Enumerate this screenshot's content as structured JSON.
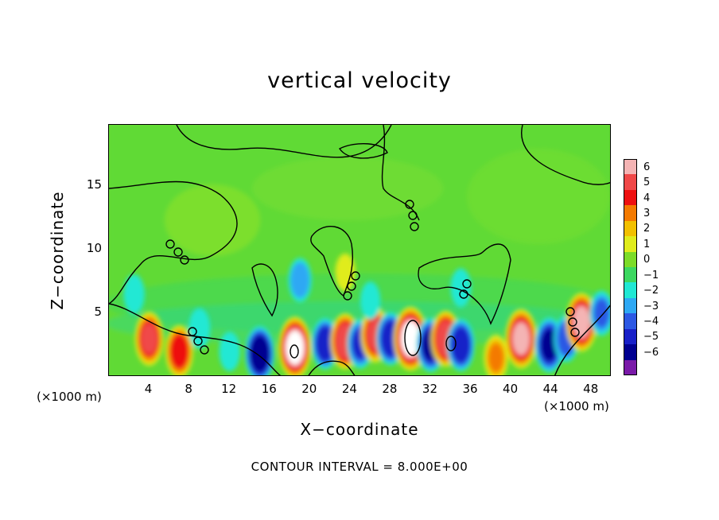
{
  "chart_data": {
    "type": "heatmap",
    "title": "vertical velocity",
    "xlabel": "X−coordinate",
    "ylabel": "Z−coordinate",
    "x_unit_left": "(×1000 m)",
    "x_unit_right": "(×1000 m)",
    "footer": "CONTOUR INTERVAL = 8.000E+00",
    "xlim": [
      0,
      50
    ],
    "ylim": [
      0,
      19.8
    ],
    "x_ticks": [
      "4",
      "8",
      "12",
      "16",
      "20",
      "24",
      "28",
      "32",
      "36",
      "40",
      "44",
      "48"
    ],
    "y_ticks": [
      "5",
      "10",
      "15"
    ],
    "colorbar_labels": [
      "6",
      "5",
      "4",
      "3",
      "2",
      "1",
      "0",
      "−1",
      "−2",
      "−3",
      "−4",
      "−5",
      "−6"
    ],
    "colorbar_colors": [
      "#f4b4b4",
      "#f04848",
      "#ee1010",
      "#f47a00",
      "#f2c000",
      "#e0ec1c",
      "#7cdc28",
      "#3cd860",
      "#20e8d4",
      "#2ea8f4",
      "#2c58e4",
      "#1820c8",
      "#000090",
      "#7a1aa8"
    ],
    "cells": [
      {
        "x": 4,
        "z": 3,
        "w": 4.8
      },
      {
        "x": 7,
        "z": 2,
        "w": 4.4
      },
      {
        "x": 15,
        "z": 1.8,
        "w": -5.2
      },
      {
        "x": 18.5,
        "z": 2.3,
        "w": 6.5
      },
      {
        "x": 21.5,
        "z": 2.6,
        "w": -4.2
      },
      {
        "x": 23.5,
        "z": 2.8,
        "w": 5.2
      },
      {
        "x": 25,
        "z": 2.6,
        "w": -3.8
      },
      {
        "x": 26.5,
        "z": 3.3,
        "w": 5.0
      },
      {
        "x": 28,
        "z": 3.0,
        "w": -4.6
      },
      {
        "x": 30,
        "z": 3.0,
        "w": 7.0
      },
      {
        "x": 32,
        "z": 2.5,
        "w": -4.8
      },
      {
        "x": 33.5,
        "z": 3.0,
        "w": 5.2
      },
      {
        "x": 35,
        "z": 2.5,
        "w": -4.4
      },
      {
        "x": 38.5,
        "z": 1.5,
        "w": 3.0
      },
      {
        "x": 41,
        "z": 3.0,
        "w": 6.0
      },
      {
        "x": 43.8,
        "z": 2.5,
        "w": -5.0
      },
      {
        "x": 45.5,
        "z": 3.0,
        "w": -3.2
      },
      {
        "x": 47,
        "z": 4.3,
        "w": 5.8
      },
      {
        "x": 49,
        "z": 5.0,
        "w": -2.8
      },
      {
        "x": 9,
        "z": 3.8,
        "w": -1.8
      },
      {
        "x": 12,
        "z": 2.0,
        "w": -1.6
      },
      {
        "x": 2.5,
        "z": 6.5,
        "w": -1.6
      },
      {
        "x": 19,
        "z": 7.6,
        "w": -2.6
      },
      {
        "x": 23.5,
        "z": 8.2,
        "w": 1.2
      },
      {
        "x": 26,
        "z": 6.0,
        "w": -1.2
      },
      {
        "x": 35,
        "z": 7.0,
        "w": -1.4
      }
    ]
  }
}
